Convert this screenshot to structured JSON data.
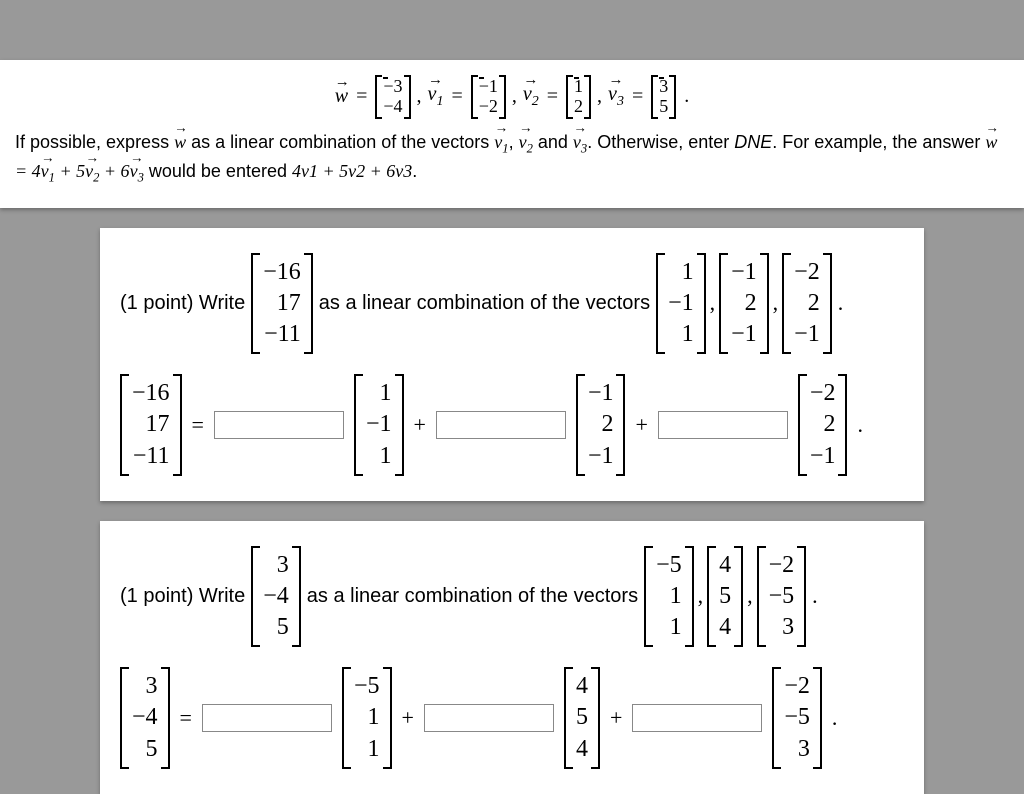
{
  "colors": {
    "page_bg": "#999999",
    "panel_bg": "#ffffff",
    "text": "#000000",
    "input_border": "#888888"
  },
  "panel1": {
    "w": [
      "−3",
      "−4"
    ],
    "v1": [
      "−1",
      "−2"
    ],
    "v2": [
      "1",
      "2"
    ],
    "v3": [
      "3",
      "5"
    ],
    "prompt_a": "If possible, express ",
    "prompt_b": " as a linear combination of the vectors ",
    "prompt_c": " and ",
    "prompt_d": ". Otherwise, enter ",
    "dne": "DNE",
    "prompt_e": ". For example, the answer ",
    "example_rhs": " = 4",
    "prompt_f": " would be entered ",
    "example_entry": "4v1 + 5v2 + 6v3",
    "plus5": " + 5",
    "plus6": " + 6"
  },
  "q1": {
    "points": "(1 point) Write",
    "mid": "as a linear combination of the vectors",
    "target": [
      "−16",
      "17",
      "−11"
    ],
    "b1": [
      "1",
      "−1",
      "1"
    ],
    "b2": [
      "−1",
      "2",
      "−1"
    ],
    "b3": [
      "−2",
      "2",
      "−1"
    ],
    "eq": "=",
    "plus": "+"
  },
  "q2": {
    "points": "(1 point) Write",
    "mid": "as a linear combination of the vectors",
    "target": [
      "3",
      "−4",
      "5"
    ],
    "b1": [
      "−5",
      "1",
      "1"
    ],
    "b2": [
      "4",
      "5",
      "4"
    ],
    "b3": [
      "−2",
      "−5",
      "3"
    ],
    "eq": "=",
    "plus": "+"
  }
}
